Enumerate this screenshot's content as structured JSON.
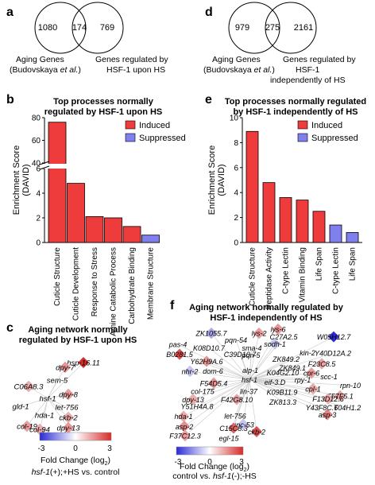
{
  "panels": {
    "a": {
      "letter": "a",
      "venn": {
        "left": "1080",
        "mid": "174",
        "right": "769"
      },
      "label_left": [
        "Aging Genes",
        "(Budovskaya et al.)"
      ],
      "label_right": [
        "Genes regulated by",
        "HSF-1 upon HS"
      ]
    },
    "d": {
      "letter": "d",
      "venn": {
        "left": "979",
        "mid": "275",
        "right": "2161"
      },
      "label_left": [
        "Aging Genes",
        "(Budovskaya et al.)"
      ],
      "label_right": [
        "Genes regulated by",
        "HSF-1",
        "independently of HS"
      ]
    },
    "b": {
      "letter": "b"
    },
    "e": {
      "letter": "e"
    },
    "c": {
      "letter": "c",
      "title": [
        "Aging network normally",
        "regulated by HSF-1 upon HS"
      ],
      "genes": [
        "hsp-16.11",
        "dpy-7",
        "sem-5",
        "C06A8.3",
        "dpy-8",
        "hsf-1",
        "let-756",
        "gld-1",
        "hda-1",
        "ckb-2",
        "col-19",
        "dpy-13",
        "col-94"
      ],
      "scale": {
        "min": "-3",
        "mid": "0",
        "max": "3",
        "label": "Fold Change (log",
        "label_sub": "2",
        "label_end": ")"
      },
      "condition": "hsf-1(+);+HS vs. control"
    },
    "f": {
      "letter": "f",
      "title": [
        "Aging network normally regulated by",
        "HSF-1 independently of HS"
      ],
      "genes": [
        "lys-6",
        "ZK1055.7",
        "lys-2",
        "C27A2.5",
        "W05H12.7",
        "pqn-54",
        "sodh-1",
        "pas-4",
        "K08D10.7",
        "sma-4",
        "pqn-5",
        "kin-2",
        "Y40D12A.2",
        "B0281.5",
        "C39D10.7",
        "ZK849.2",
        "F23C8.5",
        "Y62H9A.6",
        "ZK849.1",
        "cpr-6",
        "dom-6",
        "alp-1",
        "K04G2.10",
        "rpy-1",
        "scc-1",
        "nhr-2",
        "hsf-1",
        "eif-3.D",
        "cpl-1",
        "rpn-10",
        "F54D5.4",
        "F57F5.1",
        "col-175",
        "lin-37",
        "K09B11.9",
        "F13D12.6",
        "dpy-13",
        "F42G8.10",
        "ZK813.3",
        "Y43F8C.6",
        "T04H1.2",
        "Y51H4A.8",
        "asp-3",
        "hda-1",
        "let-756",
        "unc-53",
        "asp-2",
        "C15C8.3",
        "ckb-2",
        "F37C12.3",
        "egl-15"
      ],
      "scale": {
        "min": "-3",
        "mid": "0",
        "max": "3",
        "label": "Fold Change (log",
        "label_sub": "2",
        "label_end": ")"
      },
      "condition": "control vs. hsf-1(-);-HS"
    }
  },
  "chart_data": [
    {
      "type": "bar",
      "title": "Top processes normally regulated by HSF-1 upon HS",
      "ylabel": "Enrichment Score (DAVID)",
      "ylim": [
        0,
        80
      ],
      "broken_axis": true,
      "yticks": [
        "0",
        "2",
        "4",
        "6",
        "40",
        "60",
        "80"
      ],
      "categories": [
        "Cuticle Structure",
        "Cuticle Development",
        "Response to Stress",
        "Amine Catabolic Process",
        "Carbohydrate Binding",
        "Membrane Structure"
      ],
      "values": [
        76,
        4.8,
        2.1,
        2.0,
        1.3,
        0.6
      ],
      "groups": [
        "Induced",
        "Induced",
        "Induced",
        "Induced",
        "Induced",
        "Suppressed"
      ],
      "legend": [
        "Induced",
        "Suppressed"
      ],
      "colors": {
        "Induced": "#ee3b3b",
        "Suppressed": "#7f7fee"
      }
    },
    {
      "type": "bar",
      "title": "Top processes normally regulated by HSF-1 independently of HS",
      "ylabel": "Enrichment Score (DAVID)",
      "ylim": [
        0,
        10
      ],
      "yticks": [
        "0",
        "2",
        "4",
        "6",
        "8",
        "10"
      ],
      "categories": [
        "Cuticle Structure",
        "Peptidase Activity",
        "C-type Lectin",
        "Vitamin Binding",
        "Life Span",
        "C-type Lectin",
        "Life Span"
      ],
      "values": [
        8.9,
        4.8,
        3.6,
        3.4,
        2.5,
        1.4,
        0.8
      ],
      "groups": [
        "Induced",
        "Induced",
        "Induced",
        "Induced",
        "Induced",
        "Suppressed",
        "Suppressed"
      ],
      "legend": [
        "Induced",
        "Suppressed"
      ],
      "colors": {
        "Induced": "#ee3b3b",
        "Suppressed": "#7f7fee"
      }
    }
  ]
}
